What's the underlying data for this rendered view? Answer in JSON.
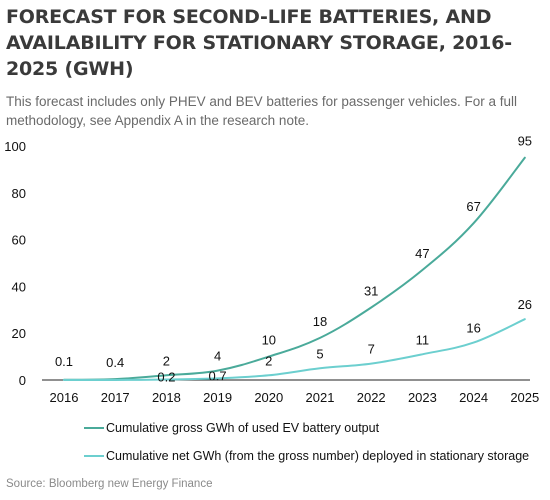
{
  "title": "FORECAST FOR SECOND-LIFE BATTERIES, AND AVAILABILITY FOR STATIONARY STORAGE, 2016-2025 (GWH)",
  "subtitle": "This forecast includes only PHEV and BEV batteries for passenger vehicles. For a full methodology, see Appendix A in the research note.",
  "source": "Source:  Bloomberg new Energy Finance",
  "colors": {
    "gross": "#4aaa9a",
    "net": "#6ccfcf",
    "axis": "#222222",
    "text": "#111111"
  },
  "chart_data": {
    "type": "line",
    "x": [
      "2016",
      "2017",
      "2018",
      "2019",
      "2020",
      "2021",
      "2022",
      "2023",
      "2024",
      "2025"
    ],
    "yticks": [
      "0",
      "20",
      "40",
      "60",
      "80",
      "100"
    ],
    "ylim": [
      0,
      100
    ],
    "grid": false,
    "legend_placement": "bottom",
    "series": [
      {
        "name": "Cumulative gross GWh of used EV battery output",
        "values": [
          0.1,
          0.4,
          2,
          4,
          10,
          18,
          31,
          47,
          67,
          95
        ],
        "labels": [
          "0.1",
          "0.4",
          "2",
          "4",
          "10",
          "18",
          "31",
          "47",
          "67",
          "95"
        ]
      },
      {
        "name": "Cumulative net GWh (from the gross number) deployed in stationary storage",
        "values": [
          0,
          0,
          0.2,
          0.7,
          2,
          5,
          7,
          11,
          16,
          26
        ],
        "labels": [
          "",
          "",
          "0.2",
          "0.7",
          "2",
          "5",
          "7",
          "11",
          "16",
          "26"
        ]
      }
    ]
  }
}
